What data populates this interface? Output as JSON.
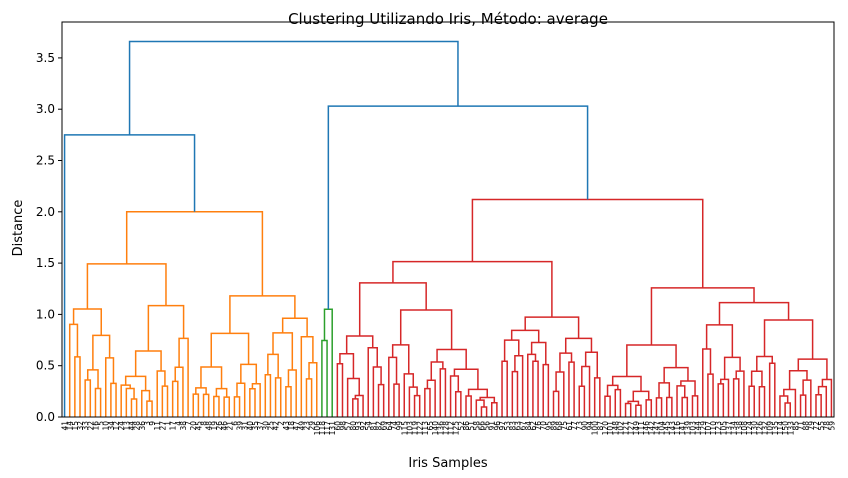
{
  "chart_data": {
    "type": "dendrogram",
    "title": "Clustering Utilizando Iris, Método: average",
    "xlabel": "Iris Samples",
    "ylabel": "Distance",
    "ylim": [
      0,
      3.85
    ],
    "y_ticks": [
      "0.0",
      "0.5",
      "1.0",
      "1.5",
      "2.0",
      "2.5",
      "3.0",
      "3.5"
    ],
    "grid": false,
    "colors": {
      "orange": "#ff7f0e",
      "green": "#2ca02c",
      "red": "#d62728",
      "blue": "#1f77b4"
    },
    "leaves": [
      "41",
      "14",
      "15",
      "32",
      "33",
      "22",
      "16",
      "5",
      "10",
      "34",
      "12",
      "24",
      "13",
      "44",
      "28",
      "36",
      "3",
      "9",
      "11",
      "27",
      "1",
      "17",
      "4",
      "38",
      "7",
      "20",
      "45",
      "8",
      "48",
      "19",
      "26",
      "46",
      "21",
      "6",
      "39",
      "31",
      "40",
      "35",
      "37",
      "30",
      "25",
      "42",
      "2",
      "43",
      "18",
      "47",
      "49",
      "23",
      "29",
      "106",
      "118",
      "117",
      "131",
      "60",
      "98",
      "57",
      "80",
      "93",
      "92",
      "54",
      "81",
      "82",
      "69",
      "64",
      "74",
      "99",
      "115",
      "103",
      "119",
      "122",
      "113",
      "65",
      "140",
      "136",
      "128",
      "112",
      "125",
      "52",
      "86",
      "51",
      "58",
      "66",
      "56",
      "91",
      "96",
      "97",
      "53",
      "83",
      "63",
      "67",
      "84",
      "62",
      "76",
      "70",
      "95",
      "89",
      "68",
      "75",
      "61",
      "77",
      "73",
      "90",
      "94",
      "100",
      "87",
      "120",
      "101",
      "148",
      "102",
      "121",
      "127",
      "149",
      "111",
      "146",
      "142",
      "147",
      "104",
      "145",
      "143",
      "116",
      "141",
      "139",
      "103",
      "144",
      "129",
      "107",
      "110",
      "123",
      "105",
      "137",
      "134",
      "138",
      "108",
      "124",
      "130",
      "126",
      "132",
      "109",
      "135",
      "114",
      "150",
      "133",
      "85",
      "71",
      "88",
      "79",
      "72",
      "55",
      "78",
      "59"
    ],
    "clusters": [
      {
        "color": "orange",
        "leaf_count": 50,
        "height": 2.0
      },
      {
        "color": "green",
        "leaf_count": 3,
        "height": 1.05
      },
      {
        "color": "red",
        "leaf_count": 97,
        "height": 2.12
      }
    ],
    "merges": [
      {
        "color": "blue",
        "height": 2.75,
        "joins": "orange + outlier 41"
      },
      {
        "color": "blue",
        "height": 3.03,
        "joins": "green + red"
      },
      {
        "color": "blue",
        "height": 3.66,
        "joins": "all"
      }
    ]
  }
}
